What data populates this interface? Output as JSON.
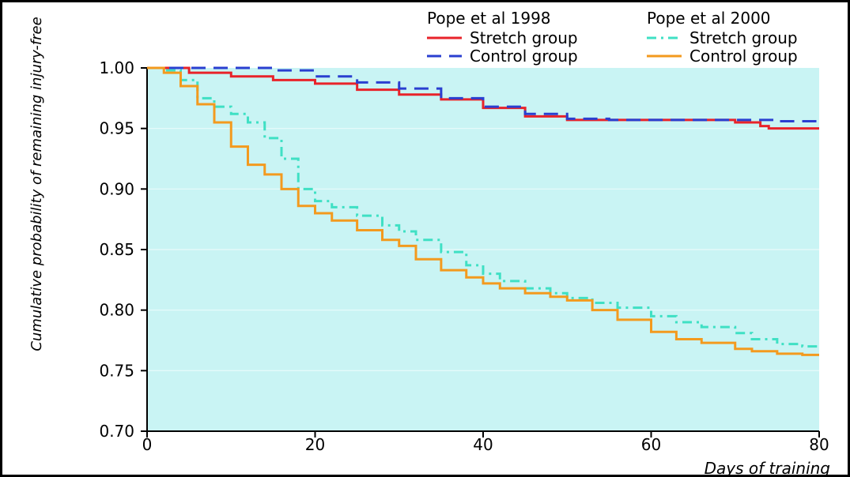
{
  "chart_data": {
    "type": "line",
    "title": "",
    "xlabel": "Days of training",
    "ylabel": "Cumulative probability of remaining injury-free",
    "xlim": [
      0,
      80
    ],
    "ylim": [
      0.7,
      1.0
    ],
    "x_ticks": [
      "0",
      "20",
      "40",
      "60",
      "80"
    ],
    "y_ticks": [
      "0.70",
      "0.75",
      "0.80",
      "0.85",
      "0.90",
      "0.95",
      "1.00"
    ],
    "grid": "horizontal",
    "legend_groups": [
      {
        "title": "Pope et al 1998",
        "items": [
          {
            "name": "Stretch group",
            "series_index": 0
          },
          {
            "name": "Control group",
            "series_index": 1
          }
        ]
      },
      {
        "title": "Pope et al 2000",
        "items": [
          {
            "name": "Stretch group",
            "series_index": 2
          },
          {
            "name": "Control group",
            "series_index": 3
          }
        ]
      }
    ],
    "series": [
      {
        "name": "Stretch group",
        "color": "#e8232a",
        "dash": "solid",
        "points": [
          [
            0,
            1.0
          ],
          [
            4,
            1.0
          ],
          [
            5,
            0.996
          ],
          [
            10,
            0.993
          ],
          [
            15,
            0.99
          ],
          [
            20,
            0.987
          ],
          [
            25,
            0.982
          ],
          [
            30,
            0.978
          ],
          [
            35,
            0.974
          ],
          [
            40,
            0.967
          ],
          [
            45,
            0.96
          ],
          [
            50,
            0.957
          ],
          [
            55,
            0.957
          ],
          [
            60,
            0.957
          ],
          [
            65,
            0.957
          ],
          [
            70,
            0.955
          ],
          [
            73,
            0.952
          ],
          [
            74,
            0.95
          ],
          [
            80,
            0.95
          ]
        ]
      },
      {
        "name": "Control group",
        "color": "#2a3fd0",
        "dash": "long-dash",
        "points": [
          [
            0,
            1.0
          ],
          [
            10,
            1.0
          ],
          [
            15,
            0.998
          ],
          [
            20,
            0.993
          ],
          [
            25,
            0.988
          ],
          [
            30,
            0.983
          ],
          [
            35,
            0.975
          ],
          [
            40,
            0.968
          ],
          [
            45,
            0.962
          ],
          [
            50,
            0.958
          ],
          [
            55,
            0.957
          ],
          [
            60,
            0.957
          ],
          [
            65,
            0.957
          ],
          [
            70,
            0.957
          ],
          [
            75,
            0.956
          ],
          [
            80,
            0.956
          ]
        ]
      },
      {
        "name": "Stretch group",
        "color": "#3fe0c4",
        "dash": "dash-dot",
        "points": [
          [
            0,
            1.0
          ],
          [
            2,
            0.998
          ],
          [
            4,
            0.99
          ],
          [
            6,
            0.975
          ],
          [
            8,
            0.968
          ],
          [
            10,
            0.962
          ],
          [
            12,
            0.955
          ],
          [
            14,
            0.942
          ],
          [
            16,
            0.925
          ],
          [
            18,
            0.9
          ],
          [
            20,
            0.89
          ],
          [
            22,
            0.885
          ],
          [
            25,
            0.878
          ],
          [
            28,
            0.87
          ],
          [
            30,
            0.865
          ],
          [
            32,
            0.858
          ],
          [
            35,
            0.848
          ],
          [
            38,
            0.837
          ],
          [
            40,
            0.83
          ],
          [
            42,
            0.824
          ],
          [
            45,
            0.818
          ],
          [
            48,
            0.814
          ],
          [
            50,
            0.81
          ],
          [
            53,
            0.806
          ],
          [
            56,
            0.802
          ],
          [
            60,
            0.795
          ],
          [
            63,
            0.79
          ],
          [
            66,
            0.786
          ],
          [
            70,
            0.781
          ],
          [
            72,
            0.776
          ],
          [
            75,
            0.772
          ],
          [
            78,
            0.77
          ],
          [
            80,
            0.769
          ]
        ]
      },
      {
        "name": "Control group",
        "color": "#f39a1e",
        "dash": "solid",
        "points": [
          [
            0,
            1.0
          ],
          [
            2,
            0.996
          ],
          [
            4,
            0.985
          ],
          [
            6,
            0.97
          ],
          [
            8,
            0.955
          ],
          [
            10,
            0.935
          ],
          [
            12,
            0.92
          ],
          [
            14,
            0.912
          ],
          [
            16,
            0.9
          ],
          [
            18,
            0.886
          ],
          [
            20,
            0.88
          ],
          [
            22,
            0.874
          ],
          [
            25,
            0.866
          ],
          [
            28,
            0.858
          ],
          [
            30,
            0.853
          ],
          [
            32,
            0.842
          ],
          [
            35,
            0.833
          ],
          [
            38,
            0.827
          ],
          [
            40,
            0.822
          ],
          [
            42,
            0.818
          ],
          [
            45,
            0.814
          ],
          [
            48,
            0.811
          ],
          [
            50,
            0.808
          ],
          [
            53,
            0.8
          ],
          [
            56,
            0.792
          ],
          [
            60,
            0.782
          ],
          [
            63,
            0.776
          ],
          [
            66,
            0.773
          ],
          [
            70,
            0.768
          ],
          [
            72,
            0.766
          ],
          [
            75,
            0.764
          ],
          [
            78,
            0.763
          ],
          [
            80,
            0.763
          ]
        ]
      }
    ],
    "background_color": "#c9f4f4"
  }
}
